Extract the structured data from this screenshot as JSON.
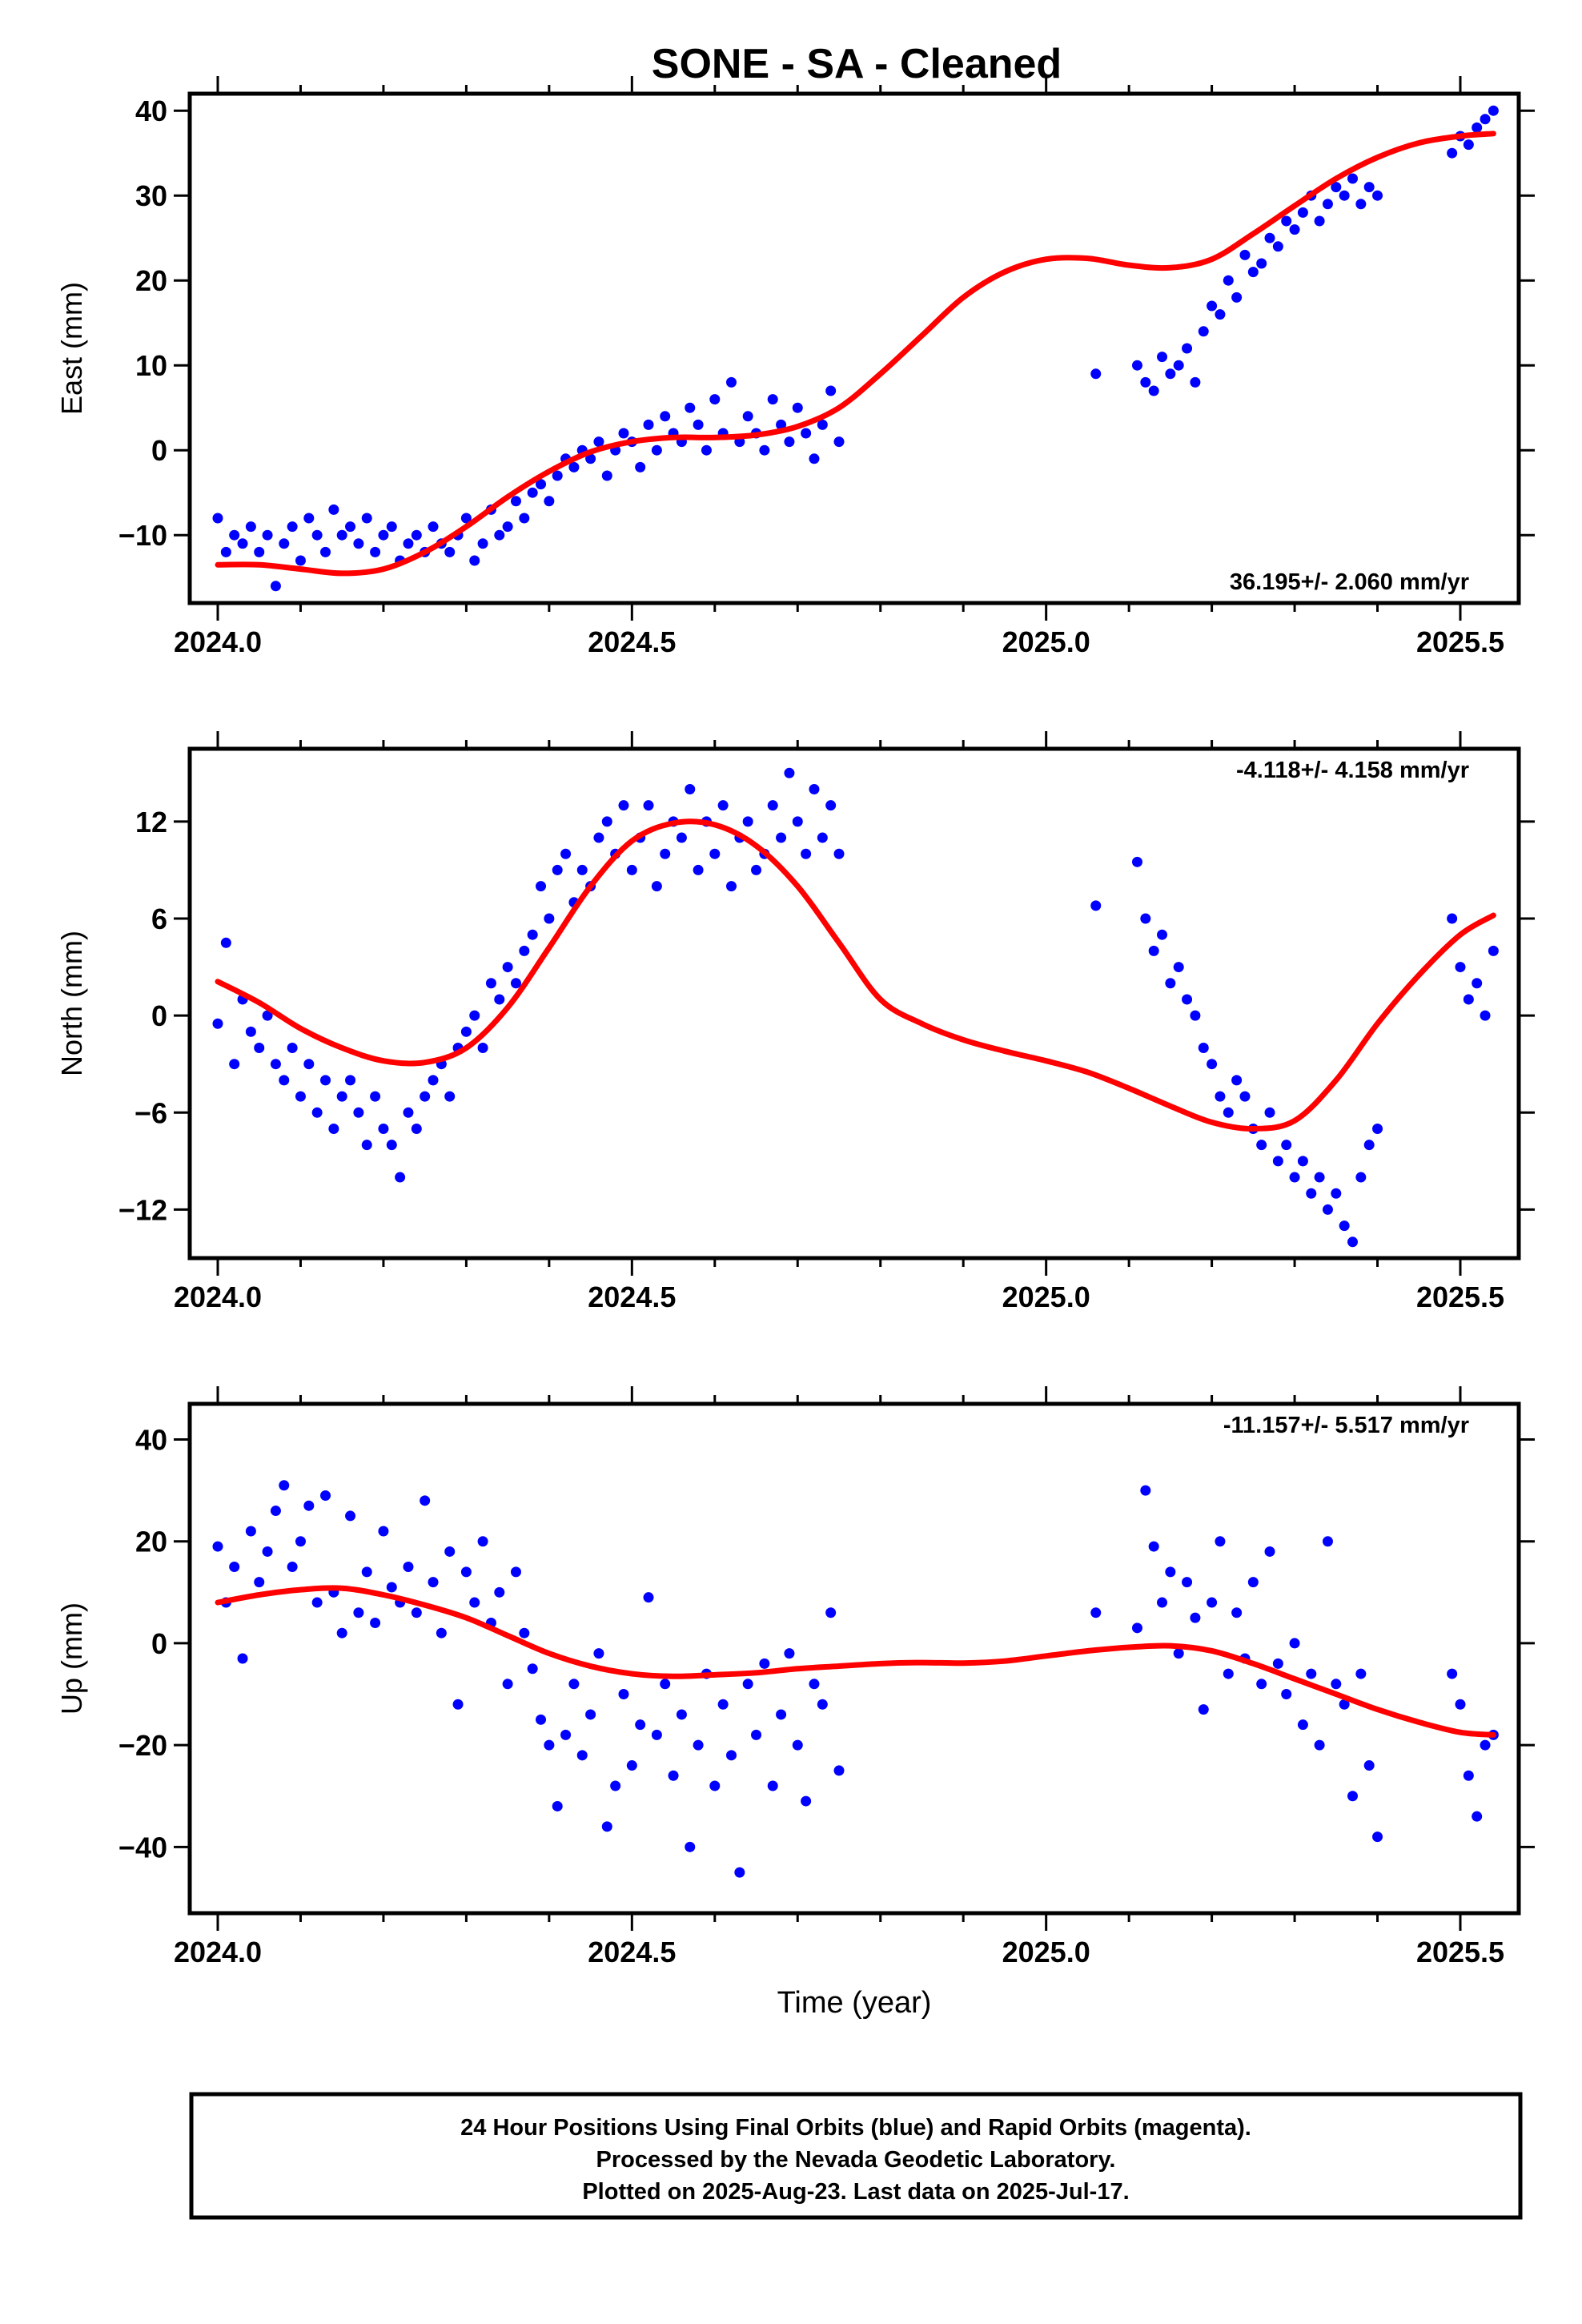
{
  "title": "SONE  - SA - Cleaned",
  "footer": {
    "lines": [
      "24 Hour Positions Using Final Orbits (blue) and Rapid Orbits (magenta).",
      "Processed by the Nevada Geodetic Laboratory.",
      "Plotted on 2025-Aug-23. Last data on 2025-Jul-17."
    ]
  },
  "colors": {
    "points": "#0000ff",
    "fit": "#ff0000"
  },
  "chart_data": [
    {
      "type": "scatter",
      "ylabel": "East (mm)",
      "xlabel": "",
      "xlim": [
        1.0,
        2.5
      ],
      "ylim": [
        -18,
        42
      ],
      "xticks": [
        1.0,
        1.5,
        2.0,
        2.5
      ],
      "xticklabels": [
        "2024.0",
        "2024.5",
        "2025.0",
        "2025.5"
      ],
      "yticks": [
        -10,
        0,
        10,
        20,
        30,
        40
      ],
      "yticklabels": [
        "−10",
        "0",
        "10",
        "20",
        "30",
        "40"
      ],
      "rate": "36.195+/- 2.060 mm/yr",
      "rate_position": "bottom-right",
      "fit": {
        "x": [
          2024.0,
          2024.05,
          2024.1,
          2024.15,
          2024.2,
          2024.25,
          2024.3,
          2024.35,
          2024.4,
          2024.45,
          2024.5,
          2024.55,
          2024.6,
          2024.65,
          2024.7,
          2024.75,
          2024.8,
          2024.85,
          2024.9,
          2024.95,
          2025.0,
          2025.05,
          2025.1,
          2025.15,
          2025.2,
          2025.25,
          2025.3,
          2025.35,
          2025.4,
          2025.45,
          2025.5,
          2025.54
        ],
        "y": [
          -13.5,
          -13.5,
          -14.0,
          -14.5,
          -14.0,
          -12.0,
          -9.0,
          -5.5,
          -2.5,
          -0.2,
          1.0,
          1.5,
          1.5,
          1.8,
          2.8,
          5.0,
          9.0,
          13.5,
          18.0,
          21.0,
          22.5,
          22.6,
          21.8,
          21.5,
          22.5,
          25.5,
          28.8,
          32.0,
          34.5,
          36.2,
          37.0,
          37.3
        ]
      },
      "points_x": [
        2024.0,
        2024.01,
        2024.02,
        2024.03,
        2024.04,
        2024.05,
        2024.06,
        2024.07,
        2024.08,
        2024.09,
        2024.1,
        2024.11,
        2024.12,
        2024.13,
        2024.14,
        2024.15,
        2024.16,
        2024.17,
        2024.18,
        2024.19,
        2024.2,
        2024.21,
        2024.22,
        2024.23,
        2024.24,
        2024.25,
        2024.26,
        2024.27,
        2024.28,
        2024.29,
        2024.3,
        2024.31,
        2024.32,
        2024.33,
        2024.34,
        2024.35,
        2024.36,
        2024.37,
        2024.38,
        2024.39,
        2024.4,
        2024.41,
        2024.42,
        2024.43,
        2024.44,
        2024.45,
        2024.46,
        2024.47,
        2024.48,
        2024.49,
        2024.5,
        2024.51,
        2024.52,
        2024.53,
        2024.54,
        2024.55,
        2024.56,
        2024.57,
        2024.58,
        2024.59,
        2024.6,
        2024.61,
        2024.62,
        2024.63,
        2024.64,
        2024.65,
        2024.66,
        2024.67,
        2024.68,
        2024.69,
        2024.7,
        2024.71,
        2024.72,
        2024.73,
        2024.74,
        2024.75,
        2025.06,
        2025.11,
        2025.12,
        2025.13,
        2025.14,
        2025.15,
        2025.16,
        2025.17,
        2025.18,
        2025.19,
        2025.2,
        2025.21,
        2025.22,
        2025.23,
        2025.24,
        2025.25,
        2025.26,
        2025.27,
        2025.28,
        2025.29,
        2025.3,
        2025.31,
        2025.32,
        2025.33,
        2025.34,
        2025.35,
        2025.36,
        2025.37,
        2025.38,
        2025.39,
        2025.4,
        2025.49,
        2025.5,
        2025.51,
        2025.52,
        2025.53,
        2025.54
      ],
      "points_y": [
        -8,
        -12,
        -10,
        -11,
        -9,
        -12,
        -10,
        -16,
        -11,
        -9,
        -13,
        -8,
        -10,
        -12,
        -7,
        -10,
        -9,
        -11,
        -8,
        -12,
        -10,
        -9,
        -13,
        -11,
        -10,
        -12,
        -9,
        -11,
        -12,
        -10,
        -8,
        -13,
        -11,
        -7,
        -10,
        -9,
        -6,
        -8,
        -5,
        -4,
        -6,
        -3,
        -1,
        -2,
        0,
        -1,
        1,
        -3,
        0,
        2,
        1,
        -2,
        3,
        0,
        4,
        2,
        1,
        5,
        3,
        0,
        6,
        2,
        8,
        1,
        4,
        2,
        0,
        6,
        3,
        1,
        5,
        2,
        -1,
        3,
        7,
        1,
        9,
        10,
        8,
        7,
        11,
        9,
        10,
        12,
        8,
        14,
        17,
        16,
        20,
        18,
        23,
        21,
        22,
        25,
        24,
        27,
        26,
        28,
        30,
        27,
        29,
        31,
        30,
        32,
        29,
        31,
        30,
        35,
        37,
        36,
        38,
        39,
        40
      ]
    },
    {
      "type": "scatter",
      "ylabel": "North (mm)",
      "xlabel": "",
      "xlim": [
        1.0,
        2.5
      ],
      "ylim": [
        -15,
        16.5
      ],
      "xticks": [
        1.0,
        1.5,
        2.0,
        2.5
      ],
      "xticklabels": [
        "2024.0",
        "2024.5",
        "2025.0",
        "2025.5"
      ],
      "yticks": [
        -12,
        -6,
        0,
        6,
        12
      ],
      "yticklabels": [
        "−12",
        "−6",
        "0",
        "6",
        "12"
      ],
      "rate": "-4.118+/- 4.158 mm/yr",
      "rate_position": "top-right",
      "fit": {
        "x": [
          2024.0,
          2024.05,
          2024.1,
          2024.15,
          2024.2,
          2024.25,
          2024.3,
          2024.35,
          2024.4,
          2024.45,
          2024.5,
          2024.55,
          2024.6,
          2024.65,
          2024.7,
          2024.75,
          2024.8,
          2024.85,
          2024.9,
          2024.95,
          2025.0,
          2025.05,
          2025.1,
          2025.15,
          2025.2,
          2025.25,
          2025.3,
          2025.35,
          2025.4,
          2025.45,
          2025.5,
          2025.54
        ],
        "y": [
          2.1,
          0.8,
          -0.8,
          -2.0,
          -2.8,
          -2.9,
          -2.0,
          0.5,
          4.2,
          8.0,
          10.8,
          11.9,
          11.8,
          10.5,
          8.0,
          4.5,
          1.0,
          -0.5,
          -1.5,
          -2.2,
          -2.8,
          -3.5,
          -4.5,
          -5.6,
          -6.6,
          -7.0,
          -6.5,
          -4.0,
          -0.5,
          2.5,
          5.0,
          6.2
        ]
      },
      "points_x": [
        2024.0,
        2024.01,
        2024.02,
        2024.03,
        2024.04,
        2024.05,
        2024.06,
        2024.07,
        2024.08,
        2024.09,
        2024.1,
        2024.11,
        2024.12,
        2024.13,
        2024.14,
        2024.15,
        2024.16,
        2024.17,
        2024.18,
        2024.19,
        2024.2,
        2024.21,
        2024.22,
        2024.23,
        2024.24,
        2024.25,
        2024.26,
        2024.27,
        2024.28,
        2024.29,
        2024.3,
        2024.31,
        2024.32,
        2024.33,
        2024.34,
        2024.35,
        2024.36,
        2024.37,
        2024.38,
        2024.39,
        2024.4,
        2024.41,
        2024.42,
        2024.43,
        2024.44,
        2024.45,
        2024.46,
        2024.47,
        2024.48,
        2024.49,
        2024.5,
        2024.51,
        2024.52,
        2024.53,
        2024.54,
        2024.55,
        2024.56,
        2024.57,
        2024.58,
        2024.59,
        2024.6,
        2024.61,
        2024.62,
        2024.63,
        2024.64,
        2024.65,
        2024.66,
        2024.67,
        2024.68,
        2024.69,
        2024.7,
        2024.71,
        2024.72,
        2024.73,
        2024.74,
        2024.75,
        2025.06,
        2025.11,
        2025.12,
        2025.13,
        2025.14,
        2025.15,
        2025.16,
        2025.17,
        2025.18,
        2025.19,
        2025.2,
        2025.21,
        2025.22,
        2025.23,
        2025.24,
        2025.25,
        2025.26,
        2025.27,
        2025.28,
        2025.29,
        2025.3,
        2025.31,
        2025.32,
        2025.33,
        2025.34,
        2025.35,
        2025.36,
        2025.37,
        2025.38,
        2025.39,
        2025.4,
        2025.49,
        2025.5,
        2025.51,
        2025.52,
        2025.53,
        2025.54
      ],
      "points_y": [
        -0.5,
        4.5,
        -3,
        1,
        -1,
        -2,
        0,
        -3,
        -4,
        -2,
        -5,
        -3,
        -6,
        -4,
        -7,
        -5,
        -4,
        -6,
        -8,
        -5,
        -7,
        -8,
        -10,
        -6,
        -7,
        -5,
        -4,
        -3,
        -5,
        -2,
        -1,
        0,
        -2,
        2,
        1,
        3,
        2,
        4,
        5,
        8,
        6,
        9,
        10,
        7,
        9,
        8,
        11,
        12,
        10,
        13,
        9,
        11,
        13,
        8,
        10,
        12,
        11,
        14,
        9,
        12,
        10,
        13,
        8,
        11,
        12,
        9,
        10,
        13,
        11,
        15,
        12,
        10,
        14,
        11,
        13,
        10,
        6.8,
        9.5,
        6,
        4,
        5,
        2,
        3,
        1,
        0,
        -2,
        -3,
        -5,
        -6,
        -4,
        -5,
        -7,
        -8,
        -6,
        -9,
        -8,
        -10,
        -9,
        -11,
        -10,
        -12,
        -11,
        -13,
        -14,
        -10,
        -8,
        -7,
        6,
        3,
        1,
        2,
        0,
        4
      ]
    },
    {
      "type": "scatter",
      "ylabel": "Up (mm)",
      "xlabel": "Time (year)",
      "xlim": [
        1.0,
        2.5
      ],
      "ylim": [
        -53,
        47
      ],
      "xticks": [
        1.0,
        1.5,
        2.0,
        2.5
      ],
      "xticklabels": [
        "2024.0",
        "2024.5",
        "2025.0",
        "2025.5"
      ],
      "yticks": [
        -40,
        -20,
        0,
        20,
        40
      ],
      "yticklabels": [
        "−40",
        "−20",
        "0",
        "20",
        "40"
      ],
      "rate": "-11.157+/- 5.517 mm/yr",
      "rate_position": "top-right",
      "fit": {
        "x": [
          2024.0,
          2024.05,
          2024.1,
          2024.15,
          2024.2,
          2024.25,
          2024.3,
          2024.35,
          2024.4,
          2024.45,
          2024.5,
          2024.55,
          2024.6,
          2024.65,
          2024.7,
          2024.75,
          2024.8,
          2024.85,
          2024.9,
          2024.95,
          2025.0,
          2025.05,
          2025.1,
          2025.15,
          2025.2,
          2025.25,
          2025.3,
          2025.35,
          2025.4,
          2025.45,
          2025.5,
          2025.54
        ],
        "y": [
          8.0,
          9.5,
          10.5,
          10.8,
          9.5,
          7.5,
          5.0,
          1.5,
          -2.0,
          -4.5,
          -6.0,
          -6.5,
          -6.2,
          -5.8,
          -5.0,
          -4.5,
          -4.0,
          -3.8,
          -3.9,
          -3.5,
          -2.5,
          -1.5,
          -0.8,
          -0.5,
          -1.5,
          -4.0,
          -7.0,
          -10.0,
          -13.0,
          -15.5,
          -17.5,
          -18.0
        ]
      },
      "points_x": [
        2024.0,
        2024.01,
        2024.02,
        2024.03,
        2024.04,
        2024.05,
        2024.06,
        2024.07,
        2024.08,
        2024.09,
        2024.1,
        2024.11,
        2024.12,
        2024.13,
        2024.14,
        2024.15,
        2024.16,
        2024.17,
        2024.18,
        2024.19,
        2024.2,
        2024.21,
        2024.22,
        2024.23,
        2024.24,
        2024.25,
        2024.26,
        2024.27,
        2024.28,
        2024.29,
        2024.3,
        2024.31,
        2024.32,
        2024.33,
        2024.34,
        2024.35,
        2024.36,
        2024.37,
        2024.38,
        2024.39,
        2024.4,
        2024.41,
        2024.42,
        2024.43,
        2024.44,
        2024.45,
        2024.46,
        2024.47,
        2024.48,
        2024.49,
        2024.5,
        2024.51,
        2024.52,
        2024.53,
        2024.54,
        2024.55,
        2024.56,
        2024.57,
        2024.58,
        2024.59,
        2024.6,
        2024.61,
        2024.62,
        2024.63,
        2024.64,
        2024.65,
        2024.66,
        2024.67,
        2024.68,
        2024.69,
        2024.7,
        2024.71,
        2024.72,
        2024.73,
        2024.74,
        2024.75,
        2025.06,
        2025.11,
        2025.12,
        2025.13,
        2025.14,
        2025.15,
        2025.16,
        2025.17,
        2025.18,
        2025.19,
        2025.2,
        2025.21,
        2025.22,
        2025.23,
        2025.24,
        2025.25,
        2025.26,
        2025.27,
        2025.28,
        2025.29,
        2025.3,
        2025.31,
        2025.32,
        2025.33,
        2025.34,
        2025.35,
        2025.36,
        2025.37,
        2025.38,
        2025.39,
        2025.4,
        2025.49,
        2025.5,
        2025.51,
        2025.52,
        2025.53,
        2025.54
      ],
      "points_y": [
        19,
        8,
        15,
        -3,
        22,
        12,
        18,
        26,
        31,
        15,
        20,
        27,
        8,
        29,
        10,
        2,
        25,
        6,
        14,
        4,
        22,
        11,
        8,
        15,
        6,
        28,
        12,
        2,
        18,
        -12,
        14,
        8,
        20,
        4,
        10,
        -8,
        14,
        2,
        -5,
        -15,
        -20,
        -32,
        -18,
        -8,
        -22,
        -14,
        -2,
        -36,
        -28,
        -10,
        -24,
        -16,
        9,
        -18,
        -8,
        -26,
        -14,
        -40,
        -20,
        -6,
        -28,
        -12,
        -22,
        -45,
        -8,
        -18,
        -4,
        -28,
        -14,
        -2,
        -20,
        -31,
        -8,
        -12,
        6,
        -25,
        6,
        3,
        30,
        19,
        8,
        14,
        -2,
        12,
        5,
        -13,
        8,
        20,
        -6,
        6,
        -3,
        12,
        -8,
        18,
        -4,
        -10,
        0,
        -16,
        -6,
        -20,
        20,
        -8,
        -12,
        -30,
        -6,
        -24,
        -38,
        -6,
        -12,
        -26,
        -34,
        -20,
        -18
      ]
    }
  ]
}
